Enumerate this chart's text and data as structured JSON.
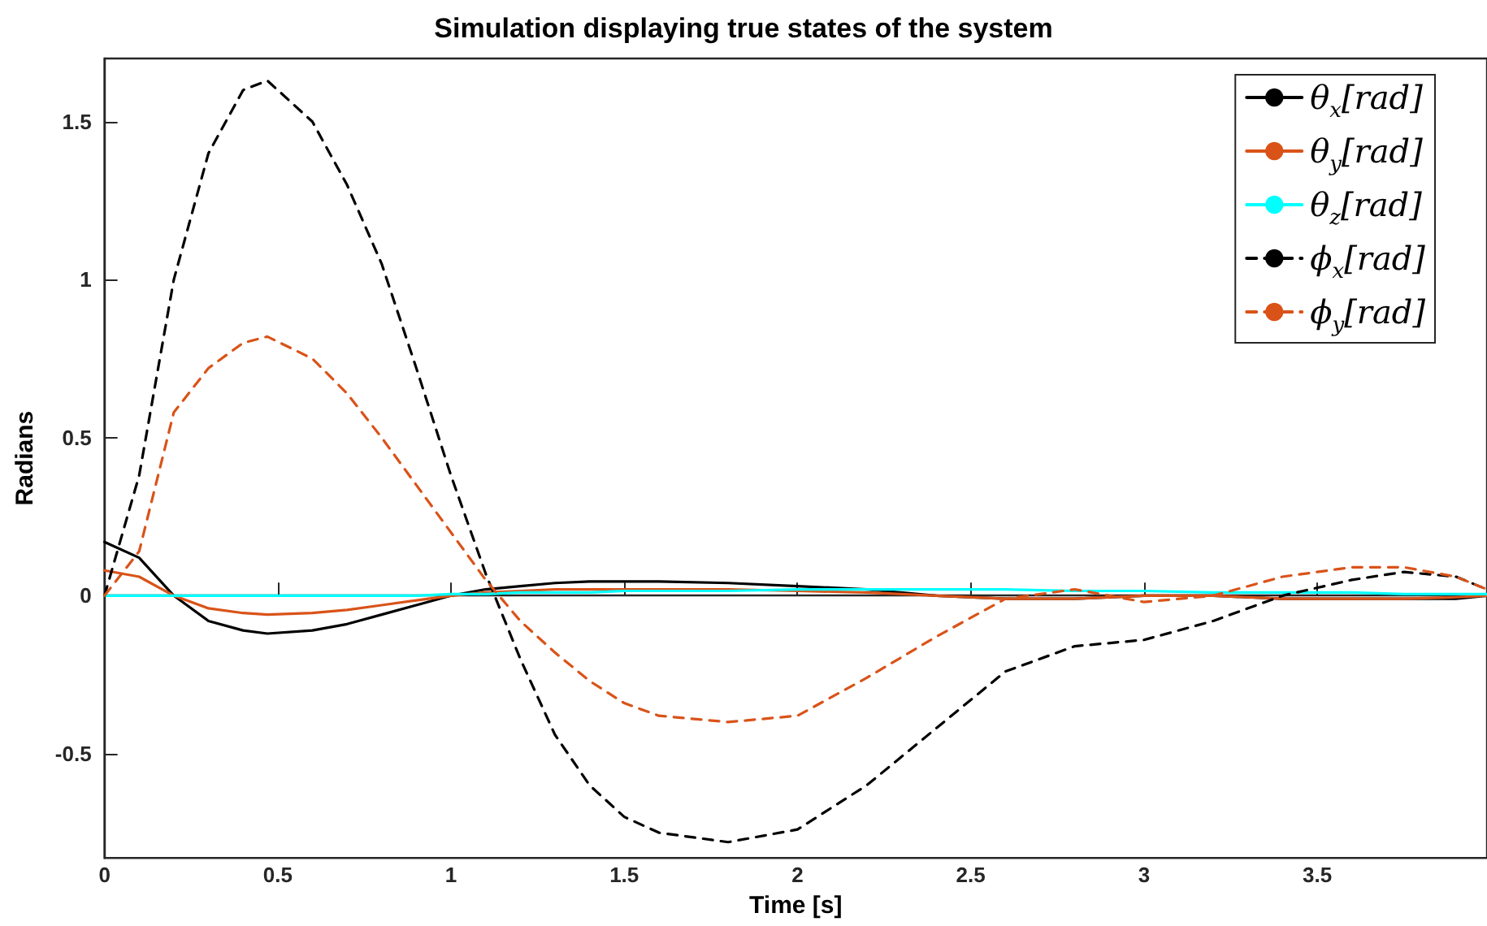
{
  "chart_data": {
    "type": "line",
    "title": "Simulation displaying true states of the system",
    "xlabel": "Time [s]",
    "ylabel": "Radians",
    "x": [
      0,
      0.1,
      0.2,
      0.3,
      0.4,
      0.47,
      0.6,
      0.7,
      0.8,
      0.9,
      1.0,
      1.1,
      1.2,
      1.3,
      1.4,
      1.5,
      1.6,
      1.8,
      2.0,
      2.2,
      2.4,
      2.6,
      2.8,
      3.0,
      3.2,
      3.4,
      3.6,
      3.75,
      3.9,
      3.99
    ],
    "series": [
      {
        "name": "θ$_{x}$[rad]",
        "color": "#000000",
        "line_style": "solid",
        "values": [
          0.17,
          0.12,
          0.0,
          -0.08,
          -0.11,
          -0.12,
          -0.11,
          -0.09,
          -0.06,
          -0.03,
          0.0,
          0.02,
          0.03,
          0.04,
          0.045,
          0.045,
          0.045,
          0.04,
          0.03,
          0.02,
          0.0,
          -0.01,
          -0.01,
          0.0,
          0.0,
          -0.01,
          -0.01,
          -0.01,
          -0.01,
          0.0
        ]
      },
      {
        "name": "θ$_{y}$[rad]",
        "color": "#d95319",
        "line_style": "solid",
        "values": [
          0.08,
          0.06,
          0.0,
          -0.04,
          -0.055,
          -0.06,
          -0.055,
          -0.045,
          -0.03,
          -0.015,
          0.0,
          0.01,
          0.015,
          0.02,
          0.02,
          0.02,
          0.02,
          0.02,
          0.015,
          0.01,
          0.0,
          -0.01,
          -0.01,
          0.0,
          0.0,
          -0.01,
          -0.01,
          -0.01,
          -0.005,
          0.0
        ]
      },
      {
        "name": "θ$_{z}$[rad]",
        "color": "#00ffff",
        "line_style": "solid",
        "values": [
          0.0,
          0.0,
          0.0,
          0.0,
          0.0,
          0.0,
          0.0,
          0.0,
          0.0,
          0.0,
          0.005,
          0.005,
          0.01,
          0.01,
          0.01,
          0.015,
          0.015,
          0.015,
          0.02,
          0.02,
          0.02,
          0.02,
          0.015,
          0.015,
          0.01,
          0.01,
          0.01,
          0.005,
          0.005,
          0.005
        ]
      },
      {
        "name": "ϕ$_{x}$[rad]",
        "color": "#000000",
        "line_style": "dashed",
        "values": [
          0.0,
          0.38,
          1.0,
          1.4,
          1.6,
          1.63,
          1.5,
          1.3,
          1.05,
          0.72,
          0.38,
          0.07,
          -0.2,
          -0.44,
          -0.6,
          -0.7,
          -0.75,
          -0.78,
          -0.74,
          -0.6,
          -0.42,
          -0.24,
          -0.16,
          -0.14,
          -0.08,
          0.0,
          0.05,
          0.075,
          0.06,
          0.02
        ]
      },
      {
        "name": "ϕ$_{y}$[rad]",
        "color": "#d95319",
        "line_style": "dashed",
        "values": [
          0.0,
          0.14,
          0.58,
          0.72,
          0.8,
          0.82,
          0.75,
          0.64,
          0.5,
          0.35,
          0.2,
          0.05,
          -0.08,
          -0.18,
          -0.27,
          -0.34,
          -0.38,
          -0.4,
          -0.38,
          -0.26,
          -0.13,
          -0.01,
          0.02,
          -0.02,
          0.0,
          0.06,
          0.09,
          0.09,
          0.06,
          0.02
        ]
      }
    ],
    "xlim": [
      0,
      3.99
    ],
    "xticks": [
      0,
      0.5,
      1,
      1.5,
      2,
      2.5,
      3,
      3.5
    ],
    "ylim": [
      -0.83,
      1.7
    ],
    "yticks": [
      -0.5,
      0,
      0.5,
      1,
      1.5
    ],
    "legend": "top right",
    "marker": "none"
  }
}
